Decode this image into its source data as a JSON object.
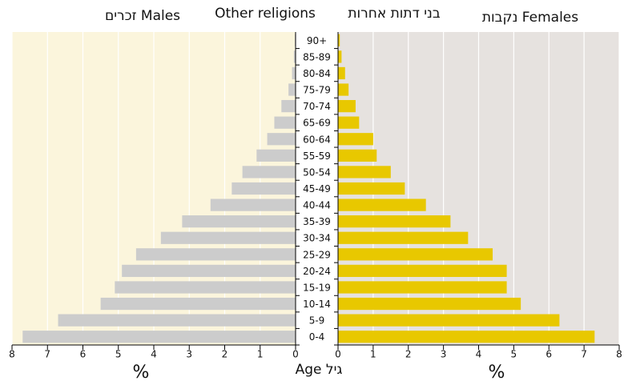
{
  "chart_data": {
    "type": "pyramid",
    "title": "Other religions",
    "title_he": "בני דתות אחרות",
    "left_title": "זכרים Males",
    "right_title": "נקבות Females",
    "xlabel": "%",
    "center_label": "Age גיל",
    "categories": [
      "0-4",
      "5-9",
      "10-14",
      "15-19",
      "20-24",
      "25-29",
      "30-34",
      "35-39",
      "40-44",
      "45-49",
      "50-54",
      "55-59",
      "60-64",
      "65-69",
      "70-74",
      "75-79",
      "80-84",
      "85-89",
      "90+"
    ],
    "series": [
      {
        "name": "Males",
        "color": "#cccccc",
        "background": "#fbf5dc",
        "values": [
          7.7,
          6.7,
          5.5,
          5.1,
          4.9,
          4.5,
          3.8,
          3.2,
          2.4,
          1.8,
          1.5,
          1.1,
          0.8,
          0.6,
          0.4,
          0.2,
          0.1,
          0.05,
          0.02
        ]
      },
      {
        "name": "Females",
        "color": "#e8c800",
        "background": "#e6e2df",
        "values": [
          7.3,
          6.3,
          5.2,
          4.8,
          4.8,
          4.4,
          3.7,
          3.2,
          2.5,
          1.9,
          1.5,
          1.1,
          1.0,
          0.6,
          0.5,
          0.3,
          0.2,
          0.1,
          0.05
        ]
      }
    ],
    "xlim": [
      0,
      8
    ],
    "xticks": [
      0,
      1,
      2,
      3,
      4,
      5,
      6,
      7,
      8
    ],
    "grid": true
  }
}
